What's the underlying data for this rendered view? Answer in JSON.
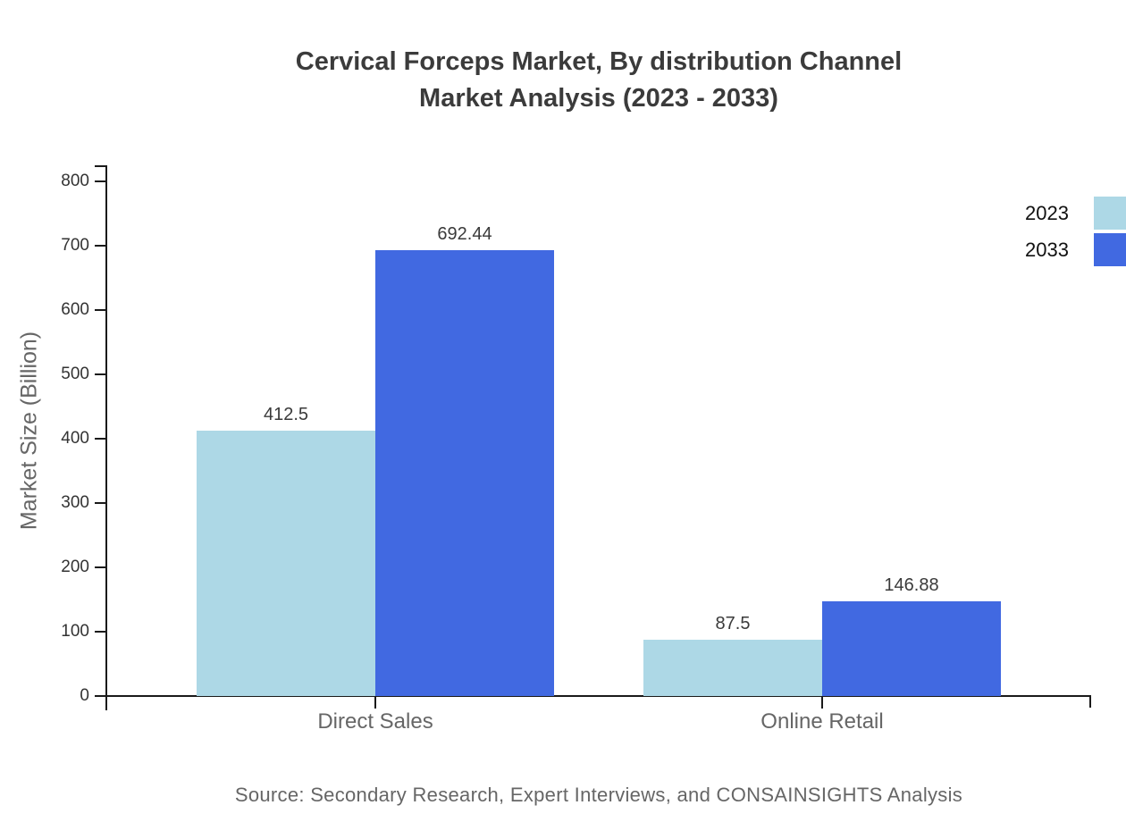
{
  "title": {
    "line1": "Cervical Forceps Market, By distribution Channel",
    "line2": "Market Analysis (2023 - 2033)"
  },
  "source_text": "Source: Secondary Research, Expert Interviews, and CONSAINSIGHTS Analysis",
  "chart_data": {
    "type": "bar",
    "title": "Cervical Forceps Market, By distribution Channel Market Analysis (2023 - 2033)",
    "categories": [
      "Direct Sales",
      "Online Retail"
    ],
    "series": [
      {
        "name": "2023",
        "color": "#ADD8E6",
        "values": [
          412.5,
          87.5
        ]
      },
      {
        "name": "2033",
        "color": "#4169E1",
        "values": [
          692.44,
          146.88
        ]
      }
    ],
    "value_labels": {
      "Direct Sales": {
        "2023": "412.5",
        "2033": "692.44"
      },
      "Online Retail": {
        "2023": "87.5",
        "2033": "146.88"
      }
    },
    "xlabel": "",
    "ylabel": "Market Size (Billion)",
    "ylim": [
      0,
      800
    ],
    "yticks": [
      0,
      100,
      200,
      300,
      400,
      500,
      600,
      700,
      800
    ],
    "grid": false,
    "legend_position": "top-right",
    "axis_color": "#1a1a1a",
    "title_color": "#3b3b3b",
    "label_color": "#666666",
    "tick_label_color": "#333333"
  }
}
